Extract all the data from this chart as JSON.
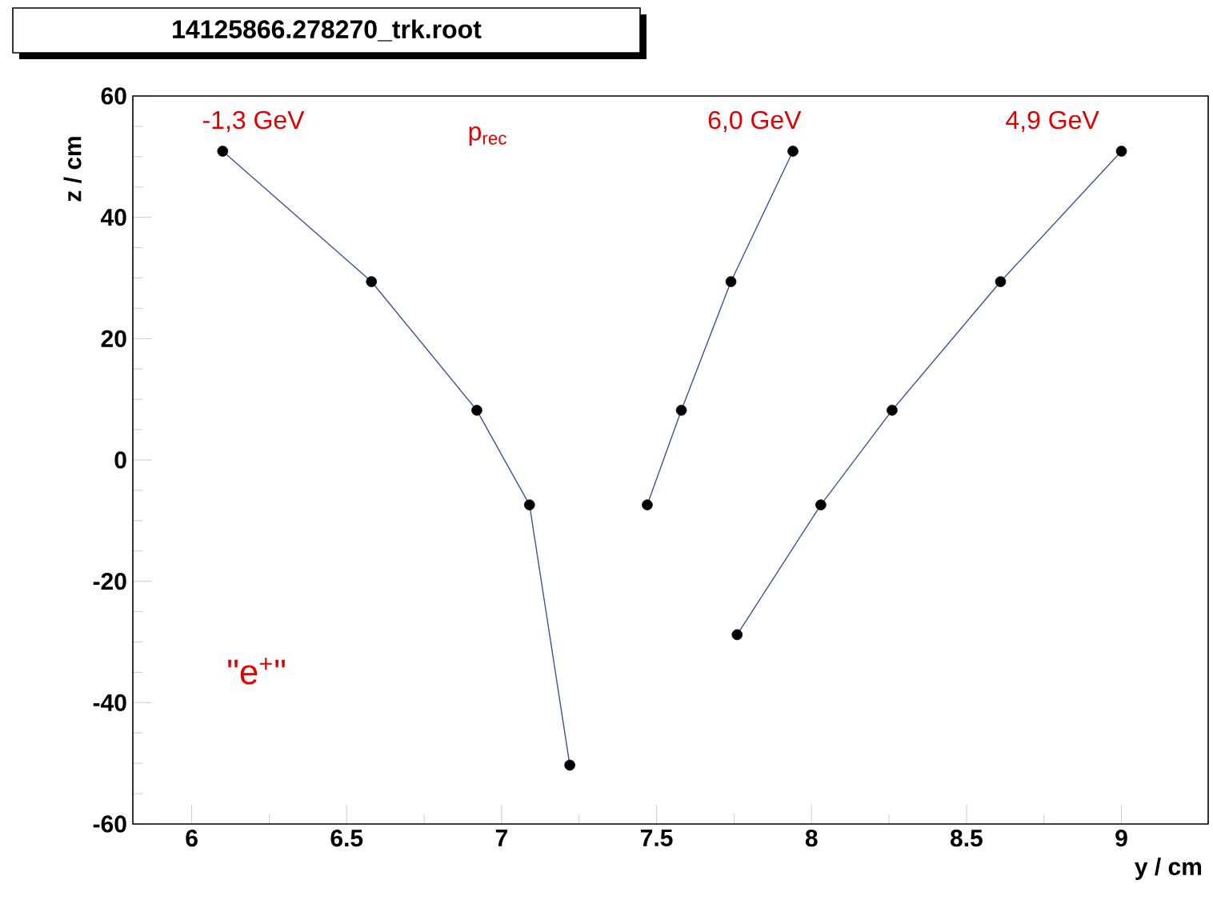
{
  "chart_data": {
    "type": "scatter",
    "title": "14125866.278270_trk.root",
    "xlabel": "y / cm",
    "ylabel": "z / cm",
    "xlim": [
      5.81,
      9.28
    ],
    "ylim": [
      -60,
      60
    ],
    "xticks": [
      6,
      6.5,
      7,
      7.5,
      8,
      8.5,
      9
    ],
    "yticks": [
      -60,
      -40,
      -20,
      0,
      20,
      40,
      60
    ],
    "grid": false,
    "series": [
      {
        "color": "#000000",
        "marker": "circle",
        "x": [
          6.1,
          6.58,
          6.92,
          7.09,
          7.22,
          7.47,
          7.58,
          7.74,
          7.94,
          7.76,
          8.03,
          8.26,
          8.61,
          9.0
        ],
        "values": [
          50.9,
          29.4,
          8.2,
          -7.4,
          -50.3,
          -7.4,
          8.2,
          29.4,
          50.9,
          -28.8,
          -7.4,
          8.2,
          29.4,
          50.9
        ]
      },
      {
        "type": "line",
        "color": "#4050a0",
        "marker": "none",
        "x": [
          6.1,
          6.58,
          6.92,
          7.09,
          7.22
        ],
        "values": [
          50.9,
          29.4,
          8.2,
          -7.4,
          -50.3
        ]
      },
      {
        "type": "line",
        "color": "#4050a0",
        "marker": "none",
        "x": [
          7.47,
          7.58,
          7.74,
          7.94
        ],
        "values": [
          -7.4,
          8.2,
          29.4,
          50.9
        ]
      },
      {
        "type": "line",
        "color": "#4050a0",
        "marker": "none",
        "x": [
          7.76,
          8.03,
          8.26,
          8.61,
          9.0
        ],
        "values": [
          -28.8,
          -7.4,
          8.2,
          29.4,
          50.9
        ]
      }
    ],
    "annotations": [
      "-1,3 GeV",
      "p$_{rec}$",
      "6,0 GeV",
      "4,9 GeV",
      "\"e$^{+}$\""
    ]
  }
}
